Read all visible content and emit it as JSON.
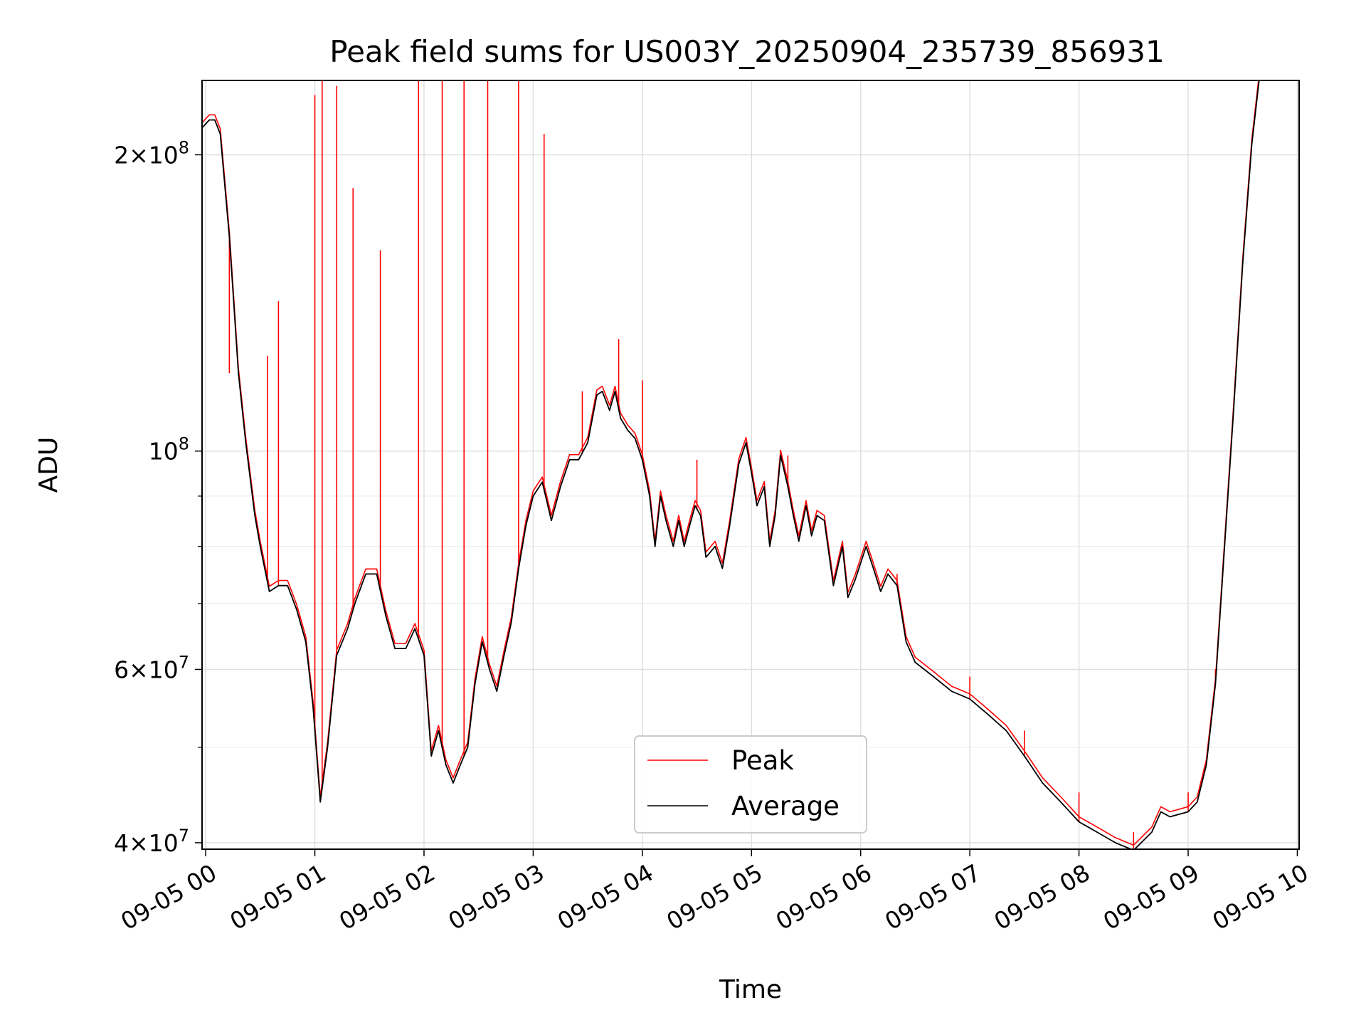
{
  "chart_data": {
    "type": "line",
    "title": "Peak field sums for US003Y_20250904_235739_856931",
    "xlabel": "Time",
    "ylabel": "ADU",
    "y_scale": "log",
    "ylim": [
      39400000,
      238000000
    ],
    "xlim": [
      "2025-09-04 23:58",
      "2025-09-05 10:01"
    ],
    "grid": true,
    "legend_position": "lower-center",
    "x_ticks": [
      "09-05 00",
      "09-05 01",
      "09-05 02",
      "09-05 03",
      "09-05 04",
      "09-05 05",
      "09-05 06",
      "09-05 07",
      "09-05 08",
      "09-05 09",
      "09-05 10"
    ],
    "x_tick_times": [
      "2025-09-05 00:00",
      "2025-09-05 01:00",
      "2025-09-05 02:00",
      "2025-09-05 03:00",
      "2025-09-05 04:00",
      "2025-09-05 05:00",
      "2025-09-05 06:00",
      "2025-09-05 07:00",
      "2025-09-05 08:00",
      "2025-09-05 09:00",
      "2025-09-05 10:00"
    ],
    "y_major_ticks": [
      {
        "value": 40000000,
        "mant": "4",
        "exp": "7"
      },
      {
        "value": 60000000,
        "mant": "6",
        "exp": "7"
      },
      {
        "value": 100000000,
        "mant": "",
        "exp": "8"
      },
      {
        "value": 200000000,
        "mant": "2",
        "exp": "8"
      }
    ],
    "y_minor_ticks": [
      50000000,
      70000000,
      80000000,
      90000000,
      300000000
    ],
    "series": [
      {
        "name": "Average",
        "color": "#000000",
        "points": [
          [
            "2025-09-04 23:58",
            213000000
          ],
          [
            "2025-09-05 00:02",
            217000000
          ],
          [
            "2025-09-05 00:05",
            217000000
          ],
          [
            "2025-09-05 00:08",
            210000000
          ],
          [
            "2025-09-05 00:13",
            165000000
          ],
          [
            "2025-09-05 00:18",
            120000000
          ],
          [
            "2025-09-05 00:22",
            102000000
          ],
          [
            "2025-09-05 00:27",
            86000000
          ],
          [
            "2025-09-05 00:30",
            80000000
          ],
          [
            "2025-09-05 00:35",
            72000000
          ],
          [
            "2025-09-05 00:40",
            73000000
          ],
          [
            "2025-09-05 00:45",
            73000000
          ],
          [
            "2025-09-05 00:50",
            69000000
          ],
          [
            "2025-09-05 00:55",
            64000000
          ],
          [
            "2025-09-05 00:59",
            55000000
          ],
          [
            "2025-09-05 01:03",
            44000000
          ],
          [
            "2025-09-05 01:07",
            50000000
          ],
          [
            "2025-09-05 01:12",
            62000000
          ],
          [
            "2025-09-05 01:18",
            66000000
          ],
          [
            "2025-09-05 01:22",
            70000000
          ],
          [
            "2025-09-05 01:28",
            75000000
          ],
          [
            "2025-09-05 01:34",
            75000000
          ],
          [
            "2025-09-05 01:39",
            68000000
          ],
          [
            "2025-09-05 01:44",
            63000000
          ],
          [
            "2025-09-05 01:50",
            63000000
          ],
          [
            "2025-09-05 01:55",
            66000000
          ],
          [
            "2025-09-05 02:00",
            62000000
          ],
          [
            "2025-09-05 02:04",
            49000000
          ],
          [
            "2025-09-05 02:08",
            52000000
          ],
          [
            "2025-09-05 02:12",
            48000000
          ],
          [
            "2025-09-05 02:16",
            46000000
          ],
          [
            "2025-09-05 02:20",
            48000000
          ],
          [
            "2025-09-05 02:24",
            50000000
          ],
          [
            "2025-09-05 02:28",
            58000000
          ],
          [
            "2025-09-05 02:32",
            64000000
          ],
          [
            "2025-09-05 02:36",
            60000000
          ],
          [
            "2025-09-05 02:40",
            57000000
          ],
          [
            "2025-09-05 02:44",
            62000000
          ],
          [
            "2025-09-05 02:48",
            67000000
          ],
          [
            "2025-09-05 02:52",
            76000000
          ],
          [
            "2025-09-05 02:56",
            84000000
          ],
          [
            "2025-09-05 03:00",
            90000000
          ],
          [
            "2025-09-05 03:05",
            93000000
          ],
          [
            "2025-09-05 03:10",
            85000000
          ],
          [
            "2025-09-05 03:15",
            92000000
          ],
          [
            "2025-09-05 03:20",
            98000000
          ],
          [
            "2025-09-05 03:25",
            98000000
          ],
          [
            "2025-09-05 03:30",
            102000000
          ],
          [
            "2025-09-05 03:35",
            114000000
          ],
          [
            "2025-09-05 03:38",
            115000000
          ],
          [
            "2025-09-05 03:42",
            110000000
          ],
          [
            "2025-09-05 03:45",
            115000000
          ],
          [
            "2025-09-05 03:48",
            108000000
          ],
          [
            "2025-09-05 03:52",
            105000000
          ],
          [
            "2025-09-05 03:56",
            103000000
          ],
          [
            "2025-09-05 04:00",
            98000000
          ],
          [
            "2025-09-05 04:04",
            90000000
          ],
          [
            "2025-09-05 04:07",
            80000000
          ],
          [
            "2025-09-05 04:10",
            90000000
          ],
          [
            "2025-09-05 04:13",
            85000000
          ],
          [
            "2025-09-05 04:17",
            80000000
          ],
          [
            "2025-09-05 04:20",
            85000000
          ],
          [
            "2025-09-05 04:23",
            80000000
          ],
          [
            "2025-09-05 04:26",
            84000000
          ],
          [
            "2025-09-05 04:29",
            88000000
          ],
          [
            "2025-09-05 04:32",
            86000000
          ],
          [
            "2025-09-05 04:35",
            78000000
          ],
          [
            "2025-09-05 04:40",
            80000000
          ],
          [
            "2025-09-05 04:44",
            76000000
          ],
          [
            "2025-09-05 04:48",
            84000000
          ],
          [
            "2025-09-05 04:53",
            97000000
          ],
          [
            "2025-09-05 04:57",
            102000000
          ],
          [
            "2025-09-05 05:00",
            95000000
          ],
          [
            "2025-09-05 05:03",
            88000000
          ],
          [
            "2025-09-05 05:07",
            92000000
          ],
          [
            "2025-09-05 05:10",
            80000000
          ],
          [
            "2025-09-05 05:13",
            86000000
          ],
          [
            "2025-09-05 05:16",
            99000000
          ],
          [
            "2025-09-05 05:20",
            92000000
          ],
          [
            "2025-09-05 05:23",
            86000000
          ],
          [
            "2025-09-05 05:26",
            81000000
          ],
          [
            "2025-09-05 05:30",
            88000000
          ],
          [
            "2025-09-05 05:33",
            82000000
          ],
          [
            "2025-09-05 05:36",
            86000000
          ],
          [
            "2025-09-05 05:40",
            85000000
          ],
          [
            "2025-09-05 05:45",
            73000000
          ],
          [
            "2025-09-05 05:50",
            80000000
          ],
          [
            "2025-09-05 05:53",
            71000000
          ],
          [
            "2025-09-05 05:57",
            74000000
          ],
          [
            "2025-09-05 06:03",
            80000000
          ],
          [
            "2025-09-05 06:07",
            76000000
          ],
          [
            "2025-09-05 06:11",
            72000000
          ],
          [
            "2025-09-05 06:15",
            75000000
          ],
          [
            "2025-09-05 06:20",
            73000000
          ],
          [
            "2025-09-05 06:25",
            64000000
          ],
          [
            "2025-09-05 06:30",
            61000000
          ],
          [
            "2025-09-05 06:40",
            59000000
          ],
          [
            "2025-09-05 06:50",
            57000000
          ],
          [
            "2025-09-05 07:00",
            56000000
          ],
          [
            "2025-09-05 07:10",
            54000000
          ],
          [
            "2025-09-05 07:20",
            52000000
          ],
          [
            "2025-09-05 07:30",
            49000000
          ],
          [
            "2025-09-05 07:40",
            46000000
          ],
          [
            "2025-09-05 07:50",
            44000000
          ],
          [
            "2025-09-05 08:00",
            42000000
          ],
          [
            "2025-09-05 08:10",
            41000000
          ],
          [
            "2025-09-05 08:20",
            40000000
          ],
          [
            "2025-09-05 08:30",
            39300000
          ],
          [
            "2025-09-05 08:40",
            41000000
          ],
          [
            "2025-09-05 08:45",
            43000000
          ],
          [
            "2025-09-05 08:50",
            42500000
          ],
          [
            "2025-09-05 09:00",
            43000000
          ],
          [
            "2025-09-05 09:05",
            44000000
          ],
          [
            "2025-09-05 09:10",
            48000000
          ],
          [
            "2025-09-05 09:15",
            58000000
          ],
          [
            "2025-09-05 09:20",
            80000000
          ],
          [
            "2025-09-05 09:25",
            110000000
          ],
          [
            "2025-09-05 09:30",
            155000000
          ],
          [
            "2025-09-05 09:35",
            205000000
          ],
          [
            "2025-09-05 09:39",
            238000000
          ]
        ]
      },
      {
        "name": "Peak",
        "color": "#ff0000",
        "points": [
          [
            "2025-09-05 00:13",
            120000000
          ],
          [
            "2025-09-05 00:34",
            125000000
          ],
          [
            "2025-09-05 00:40",
            142000000
          ],
          [
            "2025-09-05 01:00",
            230000000
          ],
          [
            "2025-09-05 01:04",
            238000000
          ],
          [
            "2025-09-05 01:12",
            235000000
          ],
          [
            "2025-09-05 01:21",
            185000000
          ],
          [
            "2025-09-05 01:36",
            160000000
          ],
          [
            "2025-09-05 01:57",
            238000000
          ],
          [
            "2025-09-05 02:10",
            238000000
          ],
          [
            "2025-09-05 02:22",
            238000000
          ],
          [
            "2025-09-05 02:35",
            238000000
          ],
          [
            "2025-09-05 02:52",
            238000000
          ],
          [
            "2025-09-05 03:06",
            210000000
          ],
          [
            "2025-09-05 03:27",
            115000000
          ],
          [
            "2025-09-05 03:47",
            130000000
          ],
          [
            "2025-09-05 04:00",
            118000000
          ],
          [
            "2025-09-05 04:30",
            98000000
          ],
          [
            "2025-09-05 05:20",
            99000000
          ],
          [
            "2025-09-05 06:20",
            75000000
          ],
          [
            "2025-09-05 07:00",
            59000000
          ],
          [
            "2025-09-05 07:30",
            52000000
          ],
          [
            "2025-09-05 08:00",
            45000000
          ],
          [
            "2025-09-05 08:30",
            41000000
          ],
          [
            "2025-09-05 09:00",
            45000000
          ],
          [
            "2025-09-05 09:15",
            60000000
          ]
        ]
      }
    ]
  }
}
